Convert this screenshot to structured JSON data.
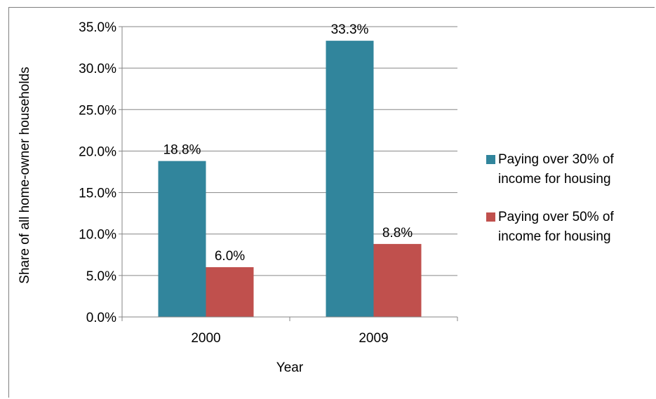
{
  "chart_data": {
    "type": "bar",
    "title": "",
    "categories": [
      "2000",
      "2009"
    ],
    "series": [
      {
        "name": "Paying over 30% of income for housing",
        "legend_lines": [
          "Paying over 30% of",
          "income for housing"
        ],
        "values": [
          18.8,
          33.3
        ],
        "labels": [
          "18.8%",
          "33.3%"
        ],
        "color": "#31859c"
      },
      {
        "name": "Paying over 50% of income for housing",
        "legend_lines": [
          "Paying over 50% of",
          "income for housing"
        ],
        "values": [
          6.0,
          8.8
        ],
        "labels": [
          "6.0%",
          "8.8%"
        ],
        "color": "#c0504d"
      }
    ],
    "xlabel": "Year",
    "ylabel": "Share of all home-owner households",
    "ylim": [
      0,
      35
    ],
    "yticks": [
      0,
      5,
      10,
      15,
      20,
      25,
      30,
      35
    ],
    "ytick_labels": [
      "0.0%",
      "5.0%",
      "10.0%",
      "15.0%",
      "20.0%",
      "25.0%",
      "30.0%",
      "35.0%"
    ],
    "grid": true,
    "legend_position": "right"
  }
}
